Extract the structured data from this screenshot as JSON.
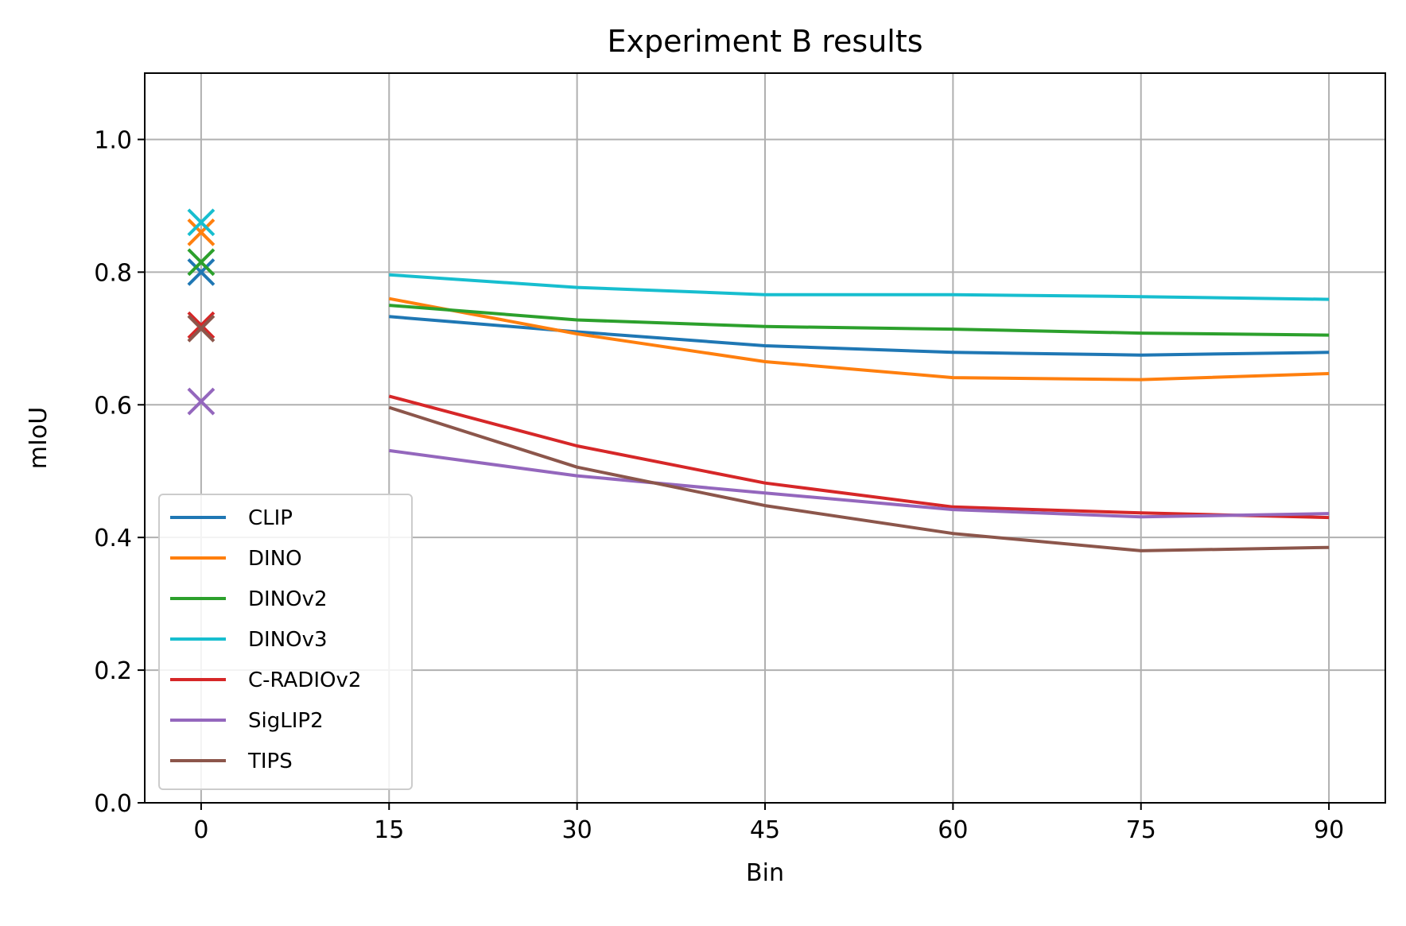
{
  "chart_data": {
    "type": "line",
    "title": "Experiment B results",
    "xlabel": "Bin",
    "ylabel": "mIoU",
    "x": [
      15,
      30,
      45,
      60,
      75,
      90
    ],
    "xticks": [
      0,
      15,
      30,
      45,
      60,
      75,
      90
    ],
    "yticks": [
      0.0,
      0.2,
      0.4,
      0.6,
      0.8,
      1.0
    ],
    "xtick_labels": [
      "0",
      "15",
      "30",
      "45",
      "60",
      "75",
      "90"
    ],
    "ytick_labels": [
      "0.0",
      "0.2",
      "0.4",
      "0.6",
      "0.8",
      "1.0"
    ],
    "xlim": [
      -4.5,
      94.5
    ],
    "ylim": [
      0.0,
      1.1
    ],
    "grid": true,
    "legend_position": "lower-left",
    "series": [
      {
        "name": "CLIP",
        "color": "#1f77b4",
        "baseline": 0.8,
        "values": [
          0.733,
          0.71,
          0.689,
          0.679,
          0.675,
          0.679
        ]
      },
      {
        "name": "DINO",
        "color": "#ff7f0e",
        "baseline": 0.86,
        "values": [
          0.76,
          0.707,
          0.665,
          0.641,
          0.638,
          0.647
        ]
      },
      {
        "name": "DINOv2",
        "color": "#2ca02c",
        "baseline": 0.815,
        "values": [
          0.75,
          0.728,
          0.718,
          0.714,
          0.708,
          0.705
        ]
      },
      {
        "name": "DINOv3",
        "color": "#17becf",
        "baseline": 0.875,
        "values": [
          0.796,
          0.777,
          0.766,
          0.766,
          0.763,
          0.759
        ]
      },
      {
        "name": "C-RADIOv2",
        "color": "#d62728",
        "baseline": 0.72,
        "values": [
          0.613,
          0.538,
          0.482,
          0.446,
          0.437,
          0.43
        ]
      },
      {
        "name": "SigLIP2",
        "color": "#9467bd",
        "baseline": 0.605,
        "values": [
          0.531,
          0.493,
          0.467,
          0.442,
          0.431,
          0.436
        ]
      },
      {
        "name": "TIPS",
        "color": "#8c564b",
        "baseline": 0.715,
        "values": [
          0.596,
          0.506,
          0.448,
          0.406,
          0.38,
          0.385
        ]
      }
    ]
  }
}
